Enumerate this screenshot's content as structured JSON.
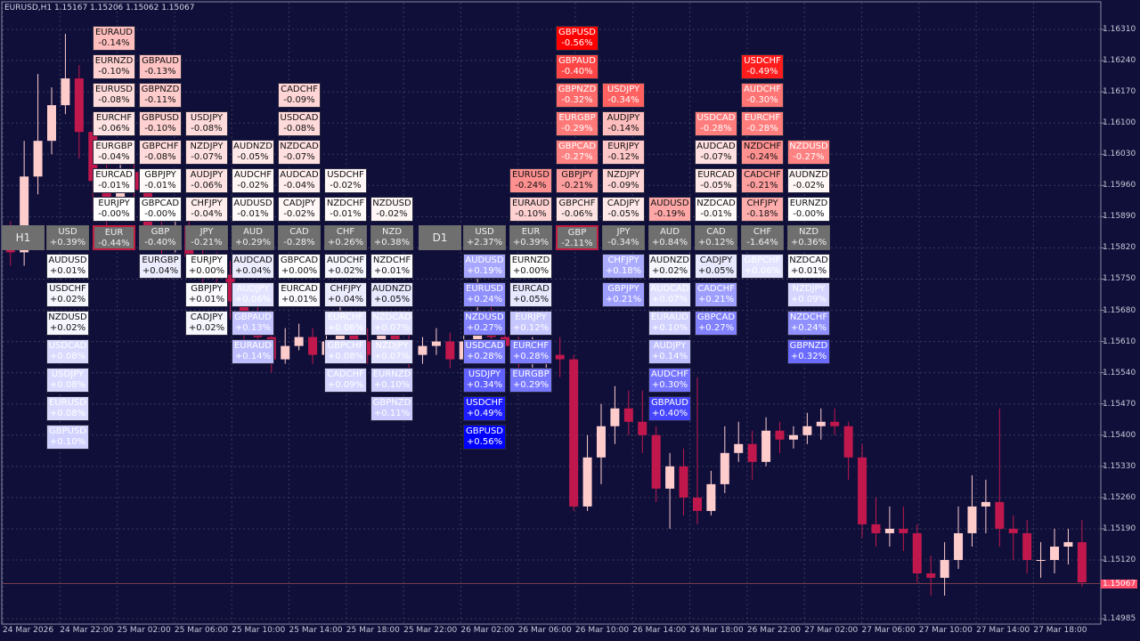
{
  "header": {
    "symbol_info": "EURUSD,H1  1.15167 1.15206 1.15062 1.15067"
  },
  "price_axis": {
    "labels": [
      "1.16310",
      "1.16240",
      "1.16170",
      "1.16100",
      "1.16030",
      "1.15960",
      "1.15890",
      "1.15820",
      "1.15750",
      "1.15680",
      "1.15610",
      "1.15540",
      "1.15470",
      "1.15400",
      "1.15330",
      "1.15260",
      "1.15190",
      "1.15120",
      "1.14985"
    ],
    "current": "1.15067"
  },
  "time_axis": [
    "24 Mar 2026",
    "24 Mar 22:00",
    "25 Mar 02:00",
    "25 Mar 06:00",
    "25 Mar 10:00",
    "25 Mar 14:00",
    "25 Mar 18:00",
    "25 Mar 22:00",
    "26 Mar 02:00",
    "26 Mar 06:00",
    "26 Mar 10:00",
    "26 Mar 14:00",
    "26 Mar 18:00",
    "26 Mar 22:00",
    "27 Mar 02:00",
    "27 Mar 06:00",
    "27 Mar 10:00",
    "27 Mar 14:00",
    "27 Mar 18:00"
  ],
  "colors": {
    "background": "#0f0f3a",
    "bull": "#ffcccc",
    "bear": "#c0184c",
    "grid": "#3a3a5a",
    "positive": "#0000ff",
    "negative": "#ff0000"
  },
  "panels": [
    {
      "timeframe": "H1",
      "columns": [
        {
          "head": {
            "name": "USD",
            "val": "+0.39%"
          },
          "above": [],
          "below": [
            [
              "AUDUSD",
              "+0.01%"
            ],
            [
              "USDCHF",
              "+0.02%"
            ],
            [
              "NZDUSD",
              "+0.02%"
            ],
            [
              "USDCAD",
              "+0.08%"
            ],
            [
              "USDJPY",
              "+0.08%"
            ],
            [
              "EURUSD",
              "+0.08%"
            ],
            [
              "GBPUSD",
              "+0.10%"
            ]
          ]
        },
        {
          "head": {
            "name": "EUR",
            "val": "-0.44%",
            "hl": true
          },
          "above": [
            [
              "EURJPY",
              "-0.00%"
            ],
            [
              "EURCAD",
              "-0.01%"
            ],
            [
              "EURGBP",
              "-0.04%"
            ],
            [
              "EURCHF",
              "-0.06%"
            ],
            [
              "EURUSD",
              "-0.08%"
            ],
            [
              "EURNZD",
              "-0.10%"
            ],
            [
              "EURAUD",
              "-0.14%"
            ]
          ],
          "below": []
        },
        {
          "head": {
            "name": "GBP",
            "val": "-0.40%"
          },
          "above": [
            [
              "GBPCAD",
              "-0.00%"
            ],
            [
              "GBPJPY",
              "-0.01%"
            ],
            [
              "GBPCHF",
              "-0.08%"
            ],
            [
              "GBPUSD",
              "-0.10%"
            ],
            [
              "GBPNZD",
              "-0.11%"
            ],
            [
              "GBPAUD",
              "-0.13%"
            ]
          ],
          "below": [
            [
              "EURGBP",
              "+0.04%"
            ]
          ]
        },
        {
          "head": {
            "name": "JPY",
            "val": "-0.21%"
          },
          "above": [
            [
              "CHFJPY",
              "-0.04%"
            ],
            [
              "AUDJPY",
              "-0.06%"
            ],
            [
              "NZDJPY",
              "-0.07%"
            ],
            [
              "USDJPY",
              "-0.08%"
            ]
          ],
          "below": [
            [
              "EURJPY",
              "+0.00%"
            ],
            [
              "GBPJPY",
              "+0.01%"
            ],
            [
              "CADJPY",
              "+0.02%"
            ]
          ]
        },
        {
          "head": {
            "name": "AUD",
            "val": "+0.29%"
          },
          "above": [
            [
              "AUDUSD",
              "-0.01%"
            ],
            [
              "AUDCHF",
              "-0.02%"
            ],
            [
              "AUDNZD",
              "-0.05%"
            ]
          ],
          "below": [
            [
              "AUDCAD",
              "+0.04%"
            ],
            [
              "AUDJPY",
              "+0.06%"
            ],
            [
              "GBPAUD",
              "+0.13%"
            ],
            [
              "EURAUD",
              "+0.14%"
            ]
          ]
        },
        {
          "head": {
            "name": "CAD",
            "val": "-0.28%"
          },
          "above": [
            [
              "CADJPY",
              "-0.02%"
            ],
            [
              "AUDCAD",
              "-0.04%"
            ],
            [
              "NZDCAD",
              "-0.07%"
            ],
            [
              "USDCAD",
              "-0.08%"
            ],
            [
              "CADCHF",
              "-0.09%"
            ]
          ],
          "below": [
            [
              "GBPCAD",
              "+0.00%"
            ],
            [
              "EURCAD",
              "+0.01%"
            ]
          ]
        },
        {
          "head": {
            "name": "CHF",
            "val": "+0.26%"
          },
          "above": [
            [
              "NZDCHF",
              "-0.01%"
            ],
            [
              "USDCHF",
              "-0.02%"
            ]
          ],
          "below": [
            [
              "AUDCHF",
              "+0.02%"
            ],
            [
              "CHFJPY",
              "+0.04%"
            ],
            [
              "EURCHF",
              "+0.06%"
            ],
            [
              "GBPCHF",
              "+0.08%"
            ],
            [
              "CADCHF",
              "+0.09%"
            ]
          ]
        },
        {
          "head": {
            "name": "NZD",
            "val": "+0.38%"
          },
          "above": [
            [
              "NZDUSD",
              "-0.02%"
            ]
          ],
          "below": [
            [
              "NZDCHF",
              "+0.01%"
            ],
            [
              "AUDNZD",
              "+0.05%"
            ],
            [
              "NZDCAD",
              "+0.07%"
            ],
            [
              "NZDJPY",
              "+0.07%"
            ],
            [
              "EURNZD",
              "+0.10%"
            ],
            [
              "GBPNZD",
              "+0.11%"
            ]
          ]
        }
      ]
    },
    {
      "timeframe": "D1",
      "columns": [
        {
          "head": {
            "name": "USD",
            "val": "+2.37%"
          },
          "above": [],
          "below": [
            [
              "AUDUSD",
              "+0.19%"
            ],
            [
              "EURUSD",
              "+0.24%"
            ],
            [
              "NZDUSD",
              "+0.27%"
            ],
            [
              "USDCAD",
              "+0.28%"
            ],
            [
              "USDJPY",
              "+0.34%"
            ],
            [
              "USDCHF",
              "+0.49%"
            ],
            [
              "GBPUSD",
              "+0.56%"
            ]
          ]
        },
        {
          "head": {
            "name": "EUR",
            "val": "+0.39%"
          },
          "above": [
            [
              "EURAUD",
              "-0.10%"
            ],
            [
              "EURUSD",
              "-0.24%"
            ]
          ],
          "below": [
            [
              "EURNZD",
              "+0.00%"
            ],
            [
              "EURCAD",
              "+0.05%"
            ],
            [
              "EURJPY",
              "+0.12%"
            ],
            [
              "EURCHF",
              "+0.28%"
            ],
            [
              "EURGBP",
              "+0.29%"
            ]
          ]
        },
        {
          "head": {
            "name": "GBP",
            "val": "-2.11%",
            "hl": true
          },
          "above": [
            [
              "GBPCHF",
              "-0.06%"
            ],
            [
              "GBPJPY",
              "-0.21%"
            ],
            [
              "GBPCAD",
              "-0.27%"
            ],
            [
              "EURGBP",
              "-0.29%"
            ],
            [
              "GBPNZD",
              "-0.32%"
            ],
            [
              "GBPAUD",
              "-0.40%"
            ],
            [
              "GBPUSD",
              "-0.56%"
            ]
          ],
          "below": []
        },
        {
          "head": {
            "name": "JPY",
            "val": "-0.34%"
          },
          "above": [
            [
              "CADJPY",
              "-0.05%"
            ],
            [
              "NZDJPY",
              "-0.09%"
            ],
            [
              "EURJPY",
              "-0.12%"
            ],
            [
              "AUDJPY",
              "-0.14%"
            ],
            [
              "USDJPY",
              "-0.34%"
            ]
          ],
          "below": [
            [
              "CHFJPY",
              "+0.18%"
            ],
            [
              "GBPJPY",
              "+0.21%"
            ]
          ]
        },
        {
          "head": {
            "name": "AUD",
            "val": "+0.84%"
          },
          "above": [
            [
              "AUDUSD",
              "-0.19%"
            ]
          ],
          "below": [
            [
              "AUDNZD",
              "+0.02%"
            ],
            [
              "AUDCAD",
              "+0.07%"
            ],
            [
              "EURAUD",
              "+0.10%"
            ],
            [
              "AUDJPY",
              "+0.14%"
            ],
            [
              "AUDCHF",
              "+0.30%"
            ],
            [
              "GBPAUD",
              "+0.40%"
            ]
          ]
        },
        {
          "head": {
            "name": "CAD",
            "val": "+0.12%"
          },
          "above": [
            [
              "NZDCAD",
              "-0.01%"
            ],
            [
              "EURCAD",
              "-0.05%"
            ],
            [
              "AUDCAD",
              "-0.07%"
            ],
            [
              "USDCAD",
              "-0.28%"
            ]
          ],
          "below": [
            [
              "CADJPY",
              "+0.05%"
            ],
            [
              "CADCHF",
              "+0.21%"
            ],
            [
              "GBPCAD",
              "+0.27%"
            ]
          ]
        },
        {
          "head": {
            "name": "CHF",
            "val": "-1.64%"
          },
          "above": [
            [
              "CHFJPY",
              "-0.18%"
            ],
            [
              "CADCHF",
              "-0.21%"
            ],
            [
              "NZDCHF",
              "-0.24%"
            ],
            [
              "EURCHF",
              "-0.28%"
            ],
            [
              "AUDCHF",
              "-0.30%"
            ],
            [
              "USDCHF",
              "-0.49%"
            ]
          ],
          "below": [
            [
              "GBPCHF",
              "+0.06%"
            ]
          ]
        },
        {
          "head": {
            "name": "NZD",
            "val": "+0.36%"
          },
          "above": [
            [
              "EURNZD",
              "-0.00%"
            ],
            [
              "AUDNZD",
              "-0.02%"
            ],
            [
              "NZDUSD",
              "-0.27%"
            ]
          ],
          "below": [
            [
              "NZDCAD",
              "+0.01%"
            ],
            [
              "NZDJPY",
              "+0.09%"
            ],
            [
              "NZDCHF",
              "+0.24%"
            ],
            [
              "GBPNZD",
              "+0.32%"
            ]
          ]
        }
      ]
    }
  ],
  "candles": [
    [
      1.1587,
      1.1581,
      1.1588,
      1.1578
    ],
    [
      1.1581,
      1.1598,
      1.1606,
      1.1578
    ],
    [
      1.1598,
      1.1606,
      1.1621,
      1.1594
    ],
    [
      1.1606,
      1.1614,
      1.1618,
      1.1603
    ],
    [
      1.1614,
      1.162,
      1.163,
      1.1612
    ],
    [
      1.162,
      1.1608,
      1.1623,
      1.1602
    ],
    [
      1.1608,
      1.1597,
      1.1612,
      1.159
    ],
    [
      1.1597,
      1.1592,
      1.1601,
      1.1586
    ],
    [
      1.1592,
      1.1599,
      1.1605,
      1.1589
    ],
    [
      1.1599,
      1.1595,
      1.1603,
      1.1591
    ],
    [
      1.1595,
      1.1587,
      1.1599,
      1.1584
    ],
    [
      1.1587,
      1.1585,
      1.1591,
      1.1578
    ],
    [
      1.1585,
      1.1587,
      1.1592,
      1.1581
    ],
    [
      1.1587,
      1.158,
      1.159,
      1.1576
    ],
    [
      1.158,
      1.1577,
      1.1584,
      1.1574
    ],
    [
      1.1577,
      1.1576,
      1.1581,
      1.1569
    ],
    [
      1.1576,
      1.157,
      1.1579,
      1.1566
    ],
    [
      1.157,
      1.1566,
      1.1574,
      1.1556
    ],
    [
      1.1566,
      1.1562,
      1.157,
      1.1558
    ],
    [
      1.1562,
      1.1557,
      1.1568,
      1.1554
    ],
    [
      1.1557,
      1.156,
      1.1564,
      1.1556
    ],
    [
      1.156,
      1.1562,
      1.1565,
      1.1559
    ],
    [
      1.1562,
      1.1558,
      1.1564,
      1.1556
    ],
    [
      1.1558,
      1.1561,
      1.1568,
      1.1557
    ],
    [
      1.1561,
      1.1564,
      1.1569,
      1.1559
    ],
    [
      1.1564,
      1.1561,
      1.1567,
      1.1558
    ],
    [
      1.1561,
      1.1558,
      1.1564,
      1.1556
    ],
    [
      1.1558,
      1.1563,
      1.1567,
      1.1556
    ],
    [
      1.1563,
      1.1559,
      1.1566,
      1.1557
    ],
    [
      1.1559,
      1.1558,
      1.1564,
      1.1555
    ],
    [
      1.1558,
      1.156,
      1.1562,
      1.1556
    ],
    [
      1.156,
      1.1561,
      1.1564,
      1.1558
    ],
    [
      1.1561,
      1.1557,
      1.1563,
      1.1555
    ],
    [
      1.1557,
      1.1561,
      1.1566,
      1.1556
    ],
    [
      1.1561,
      1.1566,
      1.158,
      1.1561
    ],
    [
      1.1566,
      1.1562,
      1.1572,
      1.1558
    ],
    [
      1.1562,
      1.156,
      1.1565,
      1.1557
    ],
    [
      1.156,
      1.1558,
      1.1562,
      1.1552
    ],
    [
      1.1558,
      1.1558,
      1.1562,
      1.1554
    ],
    [
      1.1558,
      1.1558,
      1.1561,
      1.1554
    ],
    [
      1.1558,
      1.1557,
      1.1562,
      1.1553
    ],
    [
      1.1557,
      1.1524,
      1.1558,
      1.1523
    ],
    [
      1.1524,
      1.1535,
      1.154,
      1.1523
    ],
    [
      1.1535,
      1.1542,
      1.1547,
      1.1529
    ],
    [
      1.1542,
      1.1546,
      1.1551,
      1.1538
    ],
    [
      1.1546,
      1.1543,
      1.155,
      1.154
    ],
    [
      1.1543,
      1.154,
      1.155,
      1.1536
    ],
    [
      1.154,
      1.1528,
      1.1542,
      1.1525
    ],
    [
      1.1528,
      1.1533,
      1.1536,
      1.1519
    ],
    [
      1.1533,
      1.1526,
      1.1537,
      1.1522
    ],
    [
      1.1526,
      1.1523,
      1.1553,
      1.152
    ],
    [
      1.1523,
      1.1529,
      1.1532,
      1.1522
    ],
    [
      1.1529,
      1.1536,
      1.1542,
      1.1527
    ],
    [
      1.1536,
      1.1538,
      1.1543,
      1.1534
    ],
    [
      1.1538,
      1.1534,
      1.1541,
      1.153
    ],
    [
      1.1534,
      1.1541,
      1.1544,
      1.1533
    ],
    [
      1.1541,
      1.1539,
      1.1543,
      1.1536
    ],
    [
      1.1539,
      1.154,
      1.1542,
      1.1537
    ],
    [
      1.154,
      1.1542,
      1.1545,
      1.1538
    ],
    [
      1.1542,
      1.1543,
      1.1546,
      1.1539
    ],
    [
      1.1543,
      1.1542,
      1.1546,
      1.154
    ],
    [
      1.1542,
      1.1535,
      1.1543,
      1.153
    ],
    [
      1.1535,
      1.152,
      1.1538,
      1.1517
    ],
    [
      1.152,
      1.1518,
      1.1526,
      1.1515
    ],
    [
      1.1518,
      1.1519,
      1.1524,
      1.1515
    ],
    [
      1.1519,
      1.1518,
      1.1524,
      1.1514
    ],
    [
      1.1518,
      1.1509,
      1.152,
      1.1507
    ],
    [
      1.1509,
      1.1508,
      1.1513,
      1.1504
    ],
    [
      1.1508,
      1.1512,
      1.1516,
      1.1504
    ],
    [
      1.1512,
      1.1518,
      1.1524,
      1.151
    ],
    [
      1.1518,
      1.1524,
      1.1531,
      1.1515
    ],
    [
      1.1524,
      1.1525,
      1.153,
      1.1518
    ],
    [
      1.1525,
      1.1519,
      1.1546,
      1.1515
    ],
    [
      1.1519,
      1.1518,
      1.1522,
      1.1512
    ],
    [
      1.1518,
      1.1512,
      1.1521,
      1.1509
    ],
    [
      1.1512,
      1.1512,
      1.1516,
      1.1508
    ],
    [
      1.1512,
      1.1515,
      1.1519,
      1.1509
    ],
    [
      1.1515,
      1.1516,
      1.1519,
      1.1511
    ],
    [
      1.1516,
      1.1507,
      1.1521,
      1.1506
    ]
  ]
}
